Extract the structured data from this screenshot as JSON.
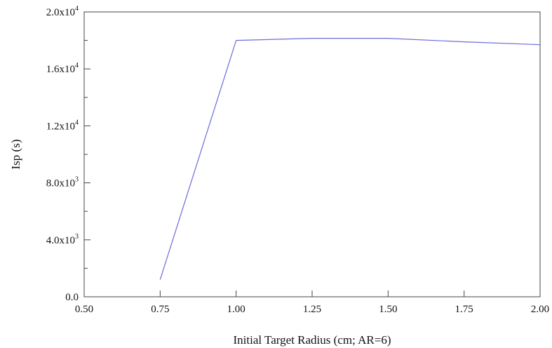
{
  "chart_data": {
    "type": "line",
    "title": "",
    "xlabel": "Initial Target Radius (cm; AR=6)",
    "ylabel": "Isp (s)",
    "xlim": [
      0.5,
      2.0
    ],
    "ylim": [
      0,
      20000
    ],
    "grid": false,
    "x_ticks": [
      0.5,
      0.75,
      1.0,
      1.25,
      1.5,
      1.75,
      2.0
    ],
    "x_tick_labels": [
      "0.50",
      "0.75",
      "1.00",
      "1.25",
      "1.50",
      "1.75",
      "2.00"
    ],
    "y_ticks": [
      0,
      4000,
      8000,
      12000,
      16000,
      20000
    ],
    "y_tick_labels": [
      {
        "mantissa": "0.0",
        "exponent": ""
      },
      {
        "mantissa": "4.0x10",
        "exponent": "3"
      },
      {
        "mantissa": "8.0x10",
        "exponent": "3"
      },
      {
        "mantissa": "1.2x10",
        "exponent": "4"
      },
      {
        "mantissa": "1.6x10",
        "exponent": "4"
      },
      {
        "mantissa": "2.0x10",
        "exponent": "4"
      }
    ],
    "series": [
      {
        "color": "#6b6bdc",
        "x": [
          0.75,
          1.0,
          1.25,
          1.5,
          1.75,
          2.0
        ],
        "y": [
          1200,
          18000,
          18150,
          18150,
          17900,
          17700
        ]
      }
    ]
  }
}
